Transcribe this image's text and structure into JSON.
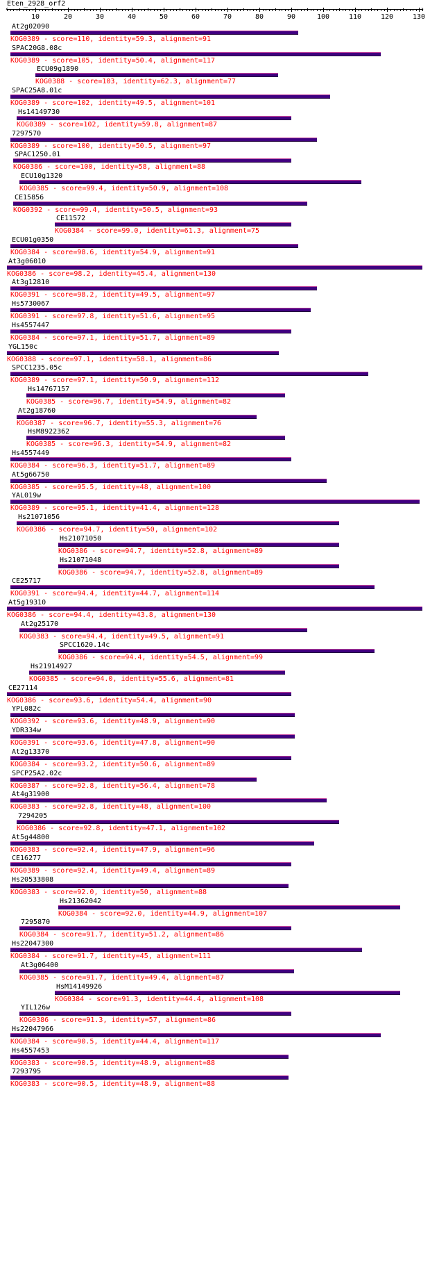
{
  "query": "Eten_2928_orf2",
  "colors": {
    "bar": "#400080",
    "label": "#000000",
    "info": "#ff0000"
  },
  "axis": {
    "min": 1,
    "max": 131,
    "ticks": [
      10,
      20,
      30,
      40,
      50,
      60,
      70,
      80,
      90,
      100,
      110,
      120,
      130
    ]
  },
  "hits": [
    {
      "name": "At2g02090",
      "kog": "KOG0389",
      "score": "110",
      "identity": "59.3",
      "alignment": "91",
      "start": 2,
      "end": 92
    },
    {
      "name": "SPAC20G8.08c",
      "kog": "KOG0389",
      "score": "105",
      "identity": "50.4",
      "alignment": "117",
      "start": 2,
      "end": 118
    },
    {
      "name": "ECU09g1890",
      "kog": "KOG0388",
      "score": "103",
      "identity": "62.3",
      "alignment": "77",
      "start": 10,
      "end": 86
    },
    {
      "name": "SPAC25A8.01c",
      "kog": "KOG0389",
      "score": "102",
      "identity": "49.5",
      "alignment": "101",
      "start": 2,
      "end": 102
    },
    {
      "name": "Hs14149730",
      "kog": "KOG0389",
      "score": "102",
      "identity": "59.8",
      "alignment": "87",
      "start": 4,
      "end": 90
    },
    {
      "name": "7297570",
      "kog": "KOG0389",
      "score": "100",
      "identity": "50.5",
      "alignment": "97",
      "start": 2,
      "end": 98
    },
    {
      "name": "SPAC1250.01",
      "kog": "KOG0386",
      "score": "100",
      "identity": "58",
      "alignment": "88",
      "start": 3,
      "end": 90
    },
    {
      "name": "ECU10g1320",
      "kog": "KOG0385",
      "score": "99.4",
      "identity": "50.9",
      "alignment": "108",
      "start": 5,
      "end": 112
    },
    {
      "name": "CE15856",
      "kog": "KOG0392",
      "score": "99.4",
      "identity": "50.5",
      "alignment": "93",
      "start": 3,
      "end": 95
    },
    {
      "name": "CE11572",
      "kog": "KOG0384",
      "score": "99.0",
      "identity": "61.3",
      "alignment": "75",
      "start": 16,
      "end": 90
    },
    {
      "name": "ECU01g0350",
      "kog": "KOG0384",
      "score": "98.6",
      "identity": "54.9",
      "alignment": "91",
      "start": 2,
      "end": 92
    },
    {
      "name": "At3g06010",
      "kog": "KOG0386",
      "score": "98.2",
      "identity": "45.4",
      "alignment": "130",
      "start": 1,
      "end": 131
    },
    {
      "name": "At3g12810",
      "kog": "KOG0391",
      "score": "98.2",
      "identity": "49.5",
      "alignment": "97",
      "start": 2,
      "end": 98
    },
    {
      "name": "Hs5730067",
      "kog": "KOG0391",
      "score": "97.8",
      "identity": "51.6",
      "alignment": "95",
      "start": 2,
      "end": 96
    },
    {
      "name": "Hs4557447",
      "kog": "KOG0384",
      "score": "97.1",
      "identity": "51.7",
      "alignment": "89",
      "start": 2,
      "end": 90
    },
    {
      "name": "YGL150c",
      "kog": "KOG0388",
      "score": "97.1",
      "identity": "58.1",
      "alignment": "86",
      "start": 1,
      "end": 86
    },
    {
      "name": "SPCC1235.05c",
      "kog": "KOG0389",
      "score": "97.1",
      "identity": "50.9",
      "alignment": "112",
      "start": 2,
      "end": 114
    },
    {
      "name": "Hs14767157",
      "kog": "KOG0385",
      "score": "96.7",
      "identity": "54.9",
      "alignment": "82",
      "start": 7,
      "end": 88
    },
    {
      "name": "At2g18760",
      "kog": "KOG0387",
      "score": "96.7",
      "identity": "55.3",
      "alignment": "76",
      "start": 4,
      "end": 79
    },
    {
      "name": "HsM8922362",
      "kog": "KOG0385",
      "score": "96.3",
      "identity": "54.9",
      "alignment": "82",
      "start": 7,
      "end": 88
    },
    {
      "name": "Hs4557449",
      "kog": "KOG0384",
      "score": "96.3",
      "identity": "51.7",
      "alignment": "89",
      "start": 2,
      "end": 90
    },
    {
      "name": "At5g66750",
      "kog": "KOG0385",
      "score": "95.5",
      "identity": "48",
      "alignment": "100",
      "start": 2,
      "end": 101
    },
    {
      "name": "YAL019w",
      "kog": "KOG0389",
      "score": "95.1",
      "identity": "41.4",
      "alignment": "128",
      "start": 2,
      "end": 130
    },
    {
      "name": "Hs21071056",
      "kog": "KOG0386",
      "score": "94.7",
      "identity": "50",
      "alignment": "102",
      "start": 4,
      "end": 105
    },
    {
      "name": "Hs21071050",
      "kog": "KOG0386",
      "score": "94.7",
      "identity": "52.8",
      "alignment": "89",
      "start": 17,
      "end": 105
    },
    {
      "name": "Hs21071048",
      "kog": "KOG0386",
      "score": "94.7",
      "identity": "52.8",
      "alignment": "89",
      "start": 17,
      "end": 105
    },
    {
      "name": "CE25717",
      "kog": "KOG0391",
      "score": "94.4",
      "identity": "44.7",
      "alignment": "114",
      "start": 2,
      "end": 116
    },
    {
      "name": "At5g19310",
      "kog": "KOG0386",
      "score": "94.4",
      "identity": "43.8",
      "alignment": "130",
      "start": 1,
      "end": 131
    },
    {
      "name": "At2g25170",
      "kog": "KOG0383",
      "score": "94.4",
      "identity": "49.5",
      "alignment": "91",
      "start": 5,
      "end": 95
    },
    {
      "name": "SPCC1620.14c",
      "kog": "KOG0386",
      "score": "94.4",
      "identity": "54.5",
      "alignment": "99",
      "start": 17,
      "end": 116
    },
    {
      "name": "Hs21914927",
      "kog": "KOG0385",
      "score": "94.0",
      "identity": "55.6",
      "alignment": "81",
      "start": 8,
      "end": 88
    },
    {
      "name": "CE27114",
      "kog": "KOG0386",
      "score": "93.6",
      "identity": "54.4",
      "alignment": "90",
      "start": 1,
      "end": 90
    },
    {
      "name": "YPL082c",
      "kog": "KOG0392",
      "score": "93.6",
      "identity": "48.9",
      "alignment": "90",
      "start": 2,
      "end": 91
    },
    {
      "name": "YDR334w",
      "kog": "KOG0391",
      "score": "93.6",
      "identity": "47.8",
      "alignment": "90",
      "start": 2,
      "end": 91
    },
    {
      "name": "At2g13370",
      "kog": "KOG0384",
      "score": "93.2",
      "identity": "50.6",
      "alignment": "89",
      "start": 2,
      "end": 90
    },
    {
      "name": "SPCP25A2.02c",
      "kog": "KOG0387",
      "score": "92.8",
      "identity": "56.4",
      "alignment": "78",
      "start": 2,
      "end": 79
    },
    {
      "name": "At4g31900",
      "kog": "KOG0383",
      "score": "92.8",
      "identity": "48",
      "alignment": "100",
      "start": 2,
      "end": 101
    },
    {
      "name": "7294205",
      "kog": "KOG0386",
      "score": "92.8",
      "identity": "47.1",
      "alignment": "102",
      "start": 4,
      "end": 105
    },
    {
      "name": "At5g44800",
      "kog": "KOG0383",
      "score": "92.4",
      "identity": "47.9",
      "alignment": "96",
      "start": 2,
      "end": 97
    },
    {
      "name": "CE16277",
      "kog": "KOG0389",
      "score": "92.4",
      "identity": "49.4",
      "alignment": "89",
      "start": 2,
      "end": 90
    },
    {
      "name": "Hs20533808",
      "kog": "KOG0383",
      "score": "92.0",
      "identity": "50",
      "alignment": "88",
      "start": 2,
      "end": 89
    },
    {
      "name": "Hs21362042",
      "kog": "KOG0384",
      "score": "92.0",
      "identity": "44.9",
      "alignment": "107",
      "start": 17,
      "end": 124
    },
    {
      "name": "7295870",
      "kog": "KOG0384",
      "score": "91.7",
      "identity": "51.2",
      "alignment": "86",
      "start": 5,
      "end": 90
    },
    {
      "name": "Hs22047300",
      "kog": "KOG0384",
      "score": "91.7",
      "identity": "45",
      "alignment": "111",
      "start": 2,
      "end": 112
    },
    {
      "name": "At3g06400",
      "kog": "KOG0385",
      "score": "91.7",
      "identity": "49.4",
      "alignment": "87",
      "start": 5,
      "end": 91
    },
    {
      "name": "HsM14149926",
      "kog": "KOG0384",
      "score": "91.3",
      "identity": "44.4",
      "alignment": "108",
      "start": 16,
      "end": 124
    },
    {
      "name": "YIL126w",
      "kog": "KOG0386",
      "score": "91.3",
      "identity": "57",
      "alignment": "86",
      "start": 5,
      "end": 90
    },
    {
      "name": "Hs22047966",
      "kog": "KOG0384",
      "score": "90.5",
      "identity": "44.4",
      "alignment": "117",
      "start": 2,
      "end": 118
    },
    {
      "name": "Hs4557453",
      "kog": "KOG0383",
      "score": "90.5",
      "identity": "48.9",
      "alignment": "88",
      "start": 2,
      "end": 89
    },
    {
      "name": "7293795",
      "kog": "KOG0383",
      "score": "90.5",
      "identity": "48.9",
      "alignment": "88",
      "start": 2,
      "end": 89
    }
  ]
}
